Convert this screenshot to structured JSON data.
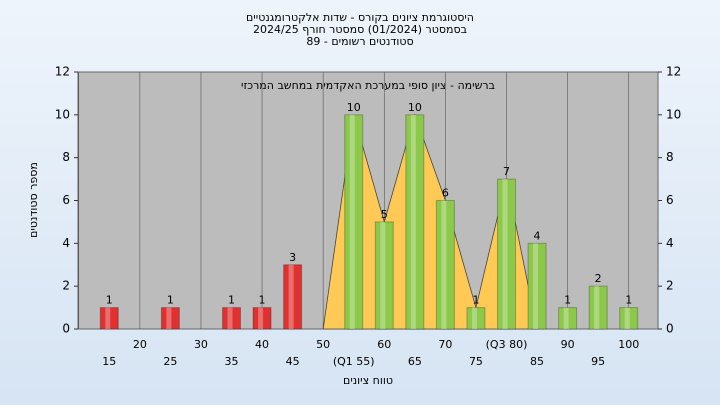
{
  "chart_data": {
    "type": "bar",
    "title": [
      "היסטוגרמת ציונים בקורס - שדות אלקטרומגנטיים",
      "בסמסטר  (01/2024)  סמסטר חורף 2024/25",
      "סטודנטים רשומים - 89"
    ],
    "annotation": "ברשימה - ציון סופי במערכת האקדמית במחשב המרכזי",
    "x_label": "טווח ציונים",
    "y_label": "מספר סטודנטים",
    "categories": [
      "15",
      "20",
      "25",
      "30",
      "35",
      "40",
      "45",
      "50",
      "(Q1 55)",
      "60",
      "65",
      "70",
      "75",
      "(Q3 80)",
      "85",
      "90",
      "95",
      "100"
    ],
    "values": [
      1,
      0,
      1,
      0,
      1,
      1,
      3,
      0,
      10,
      5,
      10,
      6,
      1,
      7,
      4,
      1,
      2,
      1
    ],
    "bar_colors": [
      "#e03030",
      "#e03030",
      "#e03030",
      "#e03030",
      "#e03030",
      "#e03030",
      "#e03030",
      "#e03030",
      "#8cc84a",
      "#8cc84a",
      "#8cc84a",
      "#8cc84a",
      "#8cc84a",
      "#8cc84a",
      "#8cc84a",
      "#8cc84a",
      "#8cc84a",
      "#8cc84a"
    ],
    "ylim": [
      0,
      12
    ],
    "yticks": [
      0,
      2,
      4,
      6,
      8,
      10,
      12
    ]
  }
}
